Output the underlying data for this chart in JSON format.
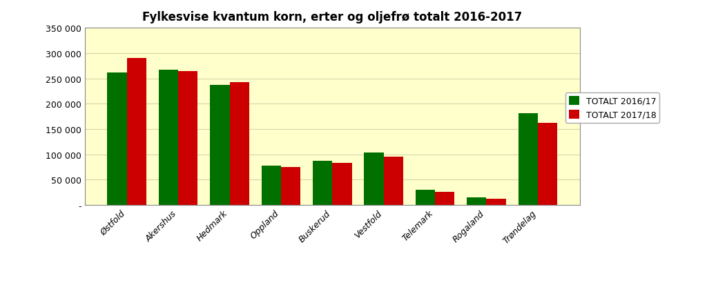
{
  "title": "Fylkesvise kvantum korn, erter og oljefrø totalt 2016-2017",
  "categories": [
    "Østfold",
    "Akershus",
    "Hedmark",
    "Oppland",
    "Buskerud",
    "Vestfold",
    "Telemark",
    "Rogaland",
    "Trøndelag"
  ],
  "series": [
    {
      "label": "TOTALT 2016/17",
      "color": "#007000",
      "values": [
        262000,
        268000,
        237000,
        78000,
        88000,
        104000,
        30000,
        15000,
        182000
      ]
    },
    {
      "label": "TOTALT 2017/18",
      "color": "#cc0000",
      "values": [
        291000,
        265000,
        243000,
        75000,
        83000,
        95000,
        26000,
        13000,
        162000
      ]
    }
  ],
  "ylim": [
    0,
    350000
  ],
  "yticks": [
    0,
    50000,
    100000,
    150000,
    200000,
    250000,
    300000,
    350000
  ],
  "ytick_labels": [
    "-",
    "50 000",
    "100 000",
    "150 000",
    "200 000",
    "250 000",
    "300 000",
    "350 000"
  ],
  "plot_area_color": "#ffffcc",
  "outer_background": "#ffffff",
  "bar_width": 0.38,
  "title_fontsize": 12,
  "tick_fontsize": 9,
  "legend_fontsize": 9,
  "grid_color": "#d4d4aa"
}
